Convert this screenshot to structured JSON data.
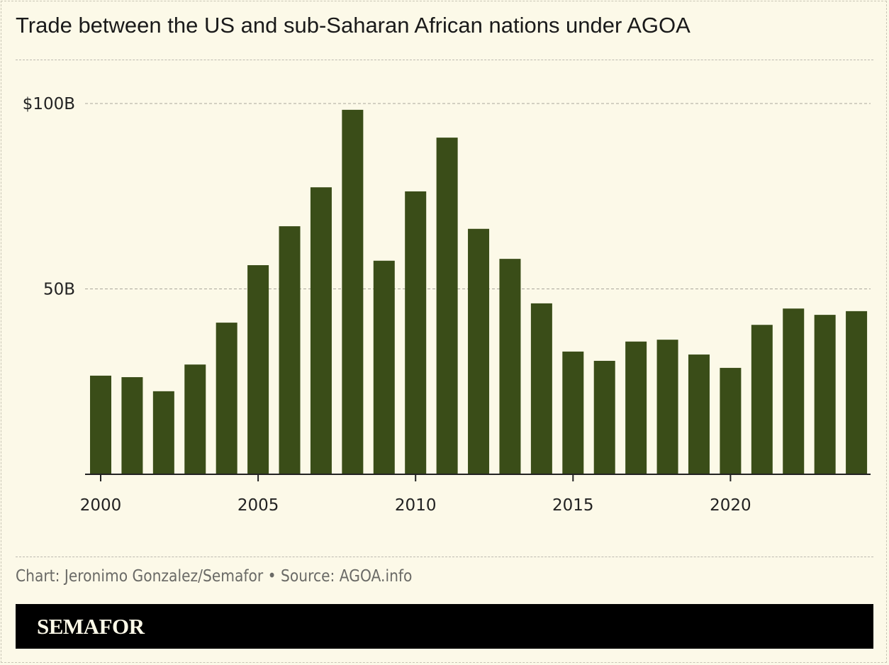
{
  "chart_data": {
    "type": "bar",
    "title": "Trade between the US and sub-Saharan African nations under AGOA",
    "xlabel": "",
    "ylabel": "",
    "categories": [
      2000,
      2001,
      2002,
      2003,
      2004,
      2005,
      2006,
      2007,
      2008,
      2009,
      2010,
      2011,
      2012,
      2013,
      2014,
      2015,
      2016,
      2017,
      2018,
      2019,
      2020,
      2021,
      2022,
      2023,
      2024
    ],
    "values": [
      26.6,
      26.2,
      22.4,
      29.6,
      40.9,
      56.4,
      66.9,
      77.4,
      98.3,
      57.6,
      76.3,
      90.8,
      66.2,
      58.1,
      46.1,
      33.1,
      30.6,
      35.8,
      36.3,
      32.3,
      28.7,
      40.3,
      44.7,
      43.0,
      44.0
    ],
    "unit": "billion USD",
    "ylim": [
      0,
      100
    ],
    "yticks": [
      {
        "value": 50,
        "label": "50B"
      },
      {
        "value": 100,
        "label": "$100B"
      }
    ],
    "xticks": [
      {
        "value": 2000,
        "label": "2000"
      },
      {
        "value": 2005,
        "label": "2005"
      },
      {
        "value": 2010,
        "label": "2010"
      },
      {
        "value": 2015,
        "label": "2015"
      },
      {
        "value": 2020,
        "label": "2020"
      }
    ],
    "grid": true,
    "bar_color": "#3a4d18"
  },
  "footer": {
    "credit": "Chart: Jeronimo Gonzalez/Semafor • Source: AGOA.info",
    "brand": "SEMAFOR"
  }
}
